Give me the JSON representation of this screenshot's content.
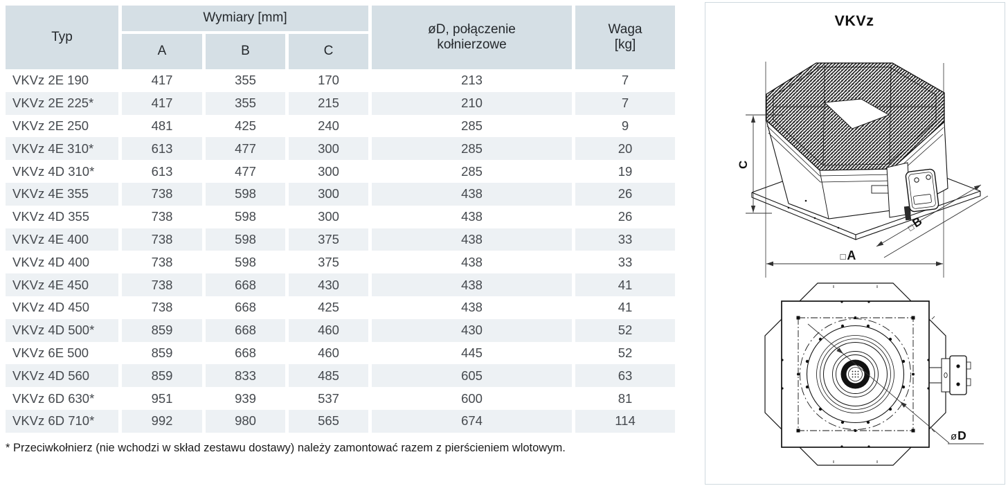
{
  "table": {
    "headers": {
      "typ": "Typ",
      "wymiary": "Wymiary [mm]",
      "a": "A",
      "b": "B",
      "c": "C",
      "od": {
        "line1": "øD, połączenie",
        "line2": "kołnierzowe"
      },
      "waga": {
        "line1": "Waga",
        "line2": "[kg]"
      }
    },
    "rows": [
      {
        "typ": "VKVz 2E 190",
        "a": "417",
        "b": "355",
        "c": "170",
        "d": "213",
        "waga": "7"
      },
      {
        "typ": "VKVz 2E 225*",
        "a": "417",
        "b": "355",
        "c": "215",
        "d": "210",
        "waga": "7"
      },
      {
        "typ": "VKVz 2E 250",
        "a": "481",
        "b": "425",
        "c": "240",
        "d": "285",
        "waga": "9"
      },
      {
        "typ": "VKVz 4E 310*",
        "a": "613",
        "b": "477",
        "c": "300",
        "d": "285",
        "waga": "20"
      },
      {
        "typ": "VKVz 4D 310*",
        "a": "613",
        "b": "477",
        "c": "300",
        "d": "285",
        "waga": "19"
      },
      {
        "typ": "VKVz 4E 355",
        "a": "738",
        "b": "598",
        "c": "300",
        "d": "438",
        "waga": "26"
      },
      {
        "typ": "VKVz 4D 355",
        "a": "738",
        "b": "598",
        "c": "300",
        "d": "438",
        "waga": "26"
      },
      {
        "typ": "VKVz 4E 400",
        "a": "738",
        "b": "598",
        "c": "375",
        "d": "438",
        "waga": "33"
      },
      {
        "typ": "VKVz 4D 400",
        "a": "738",
        "b": "598",
        "c": "375",
        "d": "438",
        "waga": "33"
      },
      {
        "typ": "VKVz 4E 450",
        "a": "738",
        "b": "668",
        "c": "430",
        "d": "438",
        "waga": "41"
      },
      {
        "typ": "VKVz 4D 450",
        "a": "738",
        "b": "668",
        "c": "425",
        "d": "438",
        "waga": "41"
      },
      {
        "typ": "VKVz 4D 500*",
        "a": "859",
        "b": "668",
        "c": "460",
        "d": "430",
        "waga": "52"
      },
      {
        "typ": "VKVz 6E 500",
        "a": "859",
        "b": "668",
        "c": "460",
        "d": "445",
        "waga": "52"
      },
      {
        "typ": "VKVz 4D 560",
        "a": "859",
        "b": "833",
        "c": "485",
        "d": "605",
        "waga": "63"
      },
      {
        "typ": "VKVz 6D 630*",
        "a": "951",
        "b": "939",
        "c": "537",
        "d": "600",
        "waga": "81"
      },
      {
        "typ": "VKVz 6D 710*",
        "a": "992",
        "b": "980",
        "c": "565",
        "d": "674",
        "waga": "114"
      }
    ],
    "footnote": "* Przeciwkołnierz (nie wchodzi w skład zestawu dostawy) należy zamontować razem z pierścieniem wlotowym."
  },
  "diagram": {
    "title": "VKVz",
    "dim_c": "C",
    "dim_a_prefix": "□",
    "dim_a": "A",
    "dim_b_prefix": "□",
    "dim_b": "B",
    "dim_d_prefix": "ø",
    "dim_d": "D"
  },
  "colors": {
    "header_bg": "#d5dfe5",
    "row_alt_bg": "#edf1f4",
    "body_text": "#45494e",
    "header_text": "#24282c",
    "panel_border": "#cfd9df",
    "line": "#111111"
  }
}
